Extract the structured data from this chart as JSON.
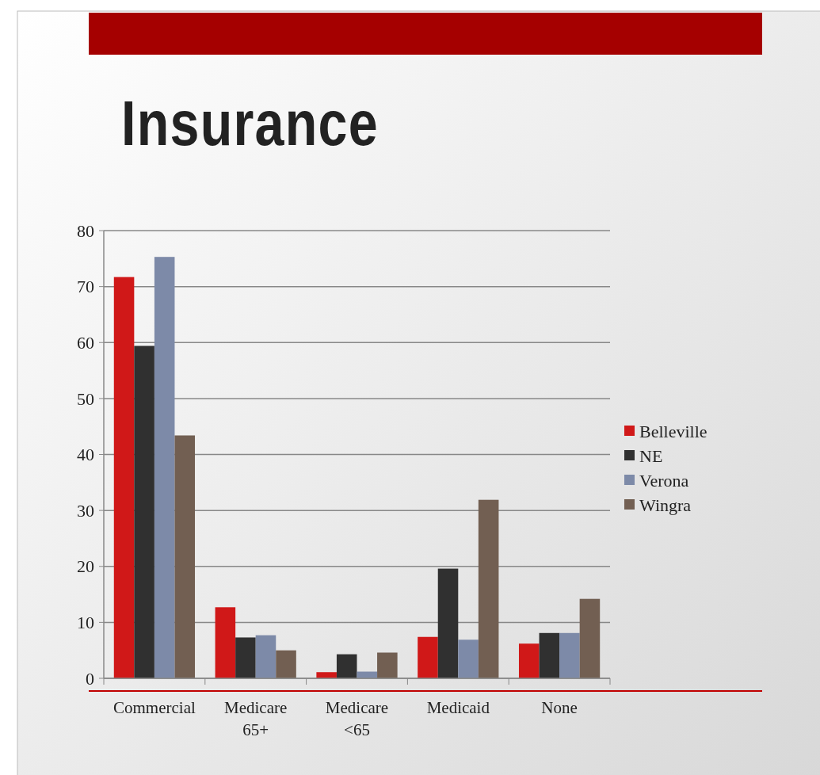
{
  "chart_data": {
    "type": "bar",
    "title": "Insurance",
    "categories": [
      "Commercial",
      "Medicare 65+",
      "Medicare <65",
      "Medicaid",
      "None"
    ],
    "series": [
      {
        "name": "Belleville",
        "color": "#d01818",
        "values": [
          71.7,
          12.7,
          1.1,
          7.4,
          6.2
        ]
      },
      {
        "name": "NE",
        "color": "#303030",
        "values": [
          59.4,
          7.3,
          4.3,
          19.6,
          8.1
        ]
      },
      {
        "name": "Verona",
        "color": "#7d8aa8",
        "values": [
          75.3,
          7.7,
          1.2,
          6.9,
          8.1
        ]
      },
      {
        "name": "Wingra",
        "color": "#725f52",
        "values": [
          43.4,
          5.0,
          4.6,
          31.9,
          14.2
        ]
      }
    ],
    "ylim": [
      0,
      80
    ],
    "yticks": [
      0,
      10,
      20,
      30,
      40,
      50,
      60,
      70,
      80
    ],
    "grid": "y",
    "legend": "right"
  }
}
